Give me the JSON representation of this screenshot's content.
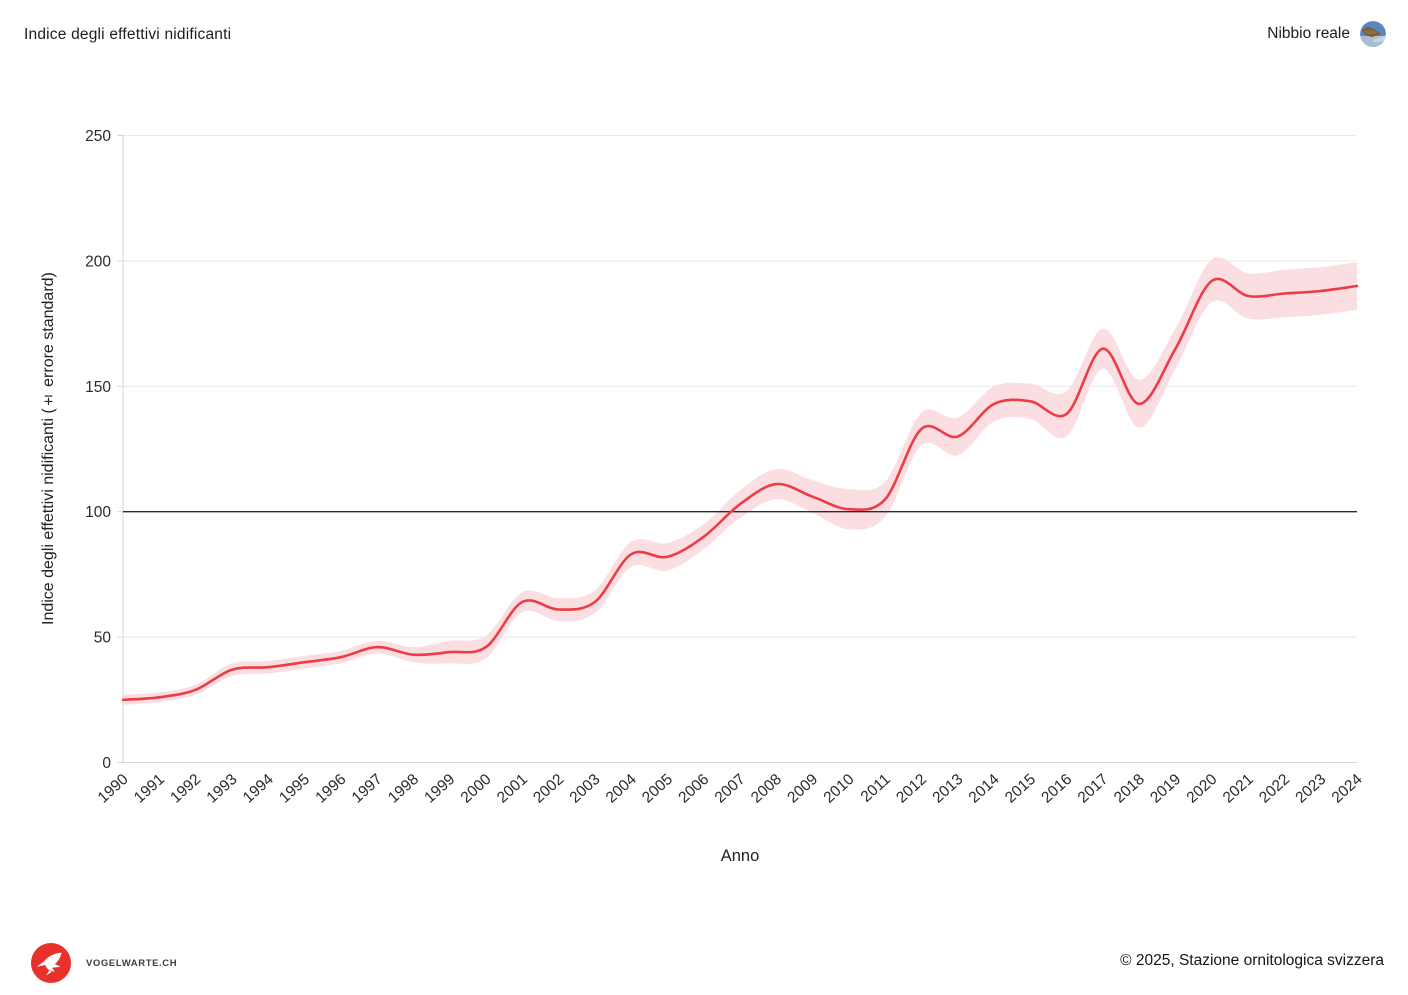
{
  "header": {
    "title": "Indice degli effettivi nidificanti",
    "species": "Nibbio reale"
  },
  "footer": {
    "logo_text": "VOGELWARTE.CH",
    "copyright": "© 2025, Stazione ornitologica svizzera"
  },
  "chart_data": {
    "type": "line",
    "title": "Indice degli effettivi nidificanti",
    "xlabel": "Anno",
    "ylabel": "Indice degli effettivi nidificanti (± errore standard)",
    "ylim": [
      0,
      250
    ],
    "yticks": [
      0,
      50,
      100,
      150,
      200,
      250
    ],
    "reference_line": 100,
    "grid": true,
    "legend": "none",
    "x": [
      1990,
      1991,
      1992,
      1993,
      1994,
      1995,
      1996,
      1997,
      1998,
      1999,
      2000,
      2001,
      2002,
      2003,
      2004,
      2005,
      2006,
      2007,
      2008,
      2009,
      2010,
      2011,
      2012,
      2013,
      2014,
      2015,
      2016,
      2017,
      2018,
      2019,
      2020,
      2021,
      2022,
      2023,
      2024
    ],
    "series": [
      {
        "name": "Nibbio reale",
        "values": [
          25,
          26,
          29,
          37,
          38,
          40,
          42,
          46,
          43,
          44,
          46,
          64,
          61,
          64,
          83,
          82,
          90,
          103,
          111,
          106,
          101,
          105,
          133,
          130,
          143,
          144,
          139,
          165,
          143,
          165,
          192,
          186,
          187,
          188,
          190
        ],
        "se": [
          2,
          2,
          2,
          2.5,
          2.5,
          2.5,
          2.5,
          2.5,
          3,
          4.5,
          4.5,
          4,
          4.5,
          4.5,
          5,
          5.5,
          5,
          5.5,
          6,
          6.5,
          8,
          7,
          6.5,
          7.5,
          7,
          7,
          9,
          8,
          9.5,
          8,
          8.5,
          9,
          9.5,
          9.5,
          9.5
        ]
      }
    ],
    "colors": {
      "line": "#ed3c47",
      "band": "#fbdee1",
      "grid": "#e9e9e9",
      "axis": "#d6d6d6",
      "reference": "#2b2b2b",
      "text": "#2b2b2b"
    }
  }
}
